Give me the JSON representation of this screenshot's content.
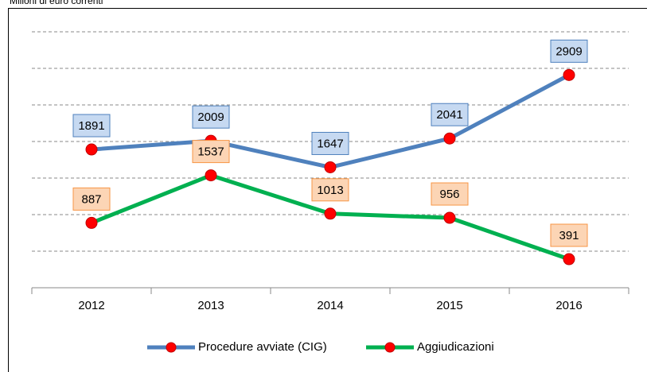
{
  "chart_data": {
    "type": "line",
    "subtitle": "Milioni di euro correnti",
    "categories": [
      "2012",
      "2013",
      "2014",
      "2015",
      "2016"
    ],
    "series": [
      {
        "name": "Procedure avviate (CIG)",
        "color": "#4f81bd",
        "label_fill": "#c6d9f1",
        "values": [
          1891,
          2009,
          1647,
          2041,
          2909
        ]
      },
      {
        "name": "Aggiudicazioni",
        "color": "#00b050",
        "label_fill": "#fcd5b5",
        "label_border": "#f79646",
        "values": [
          887,
          1537,
          1013,
          956,
          391
        ]
      }
    ],
    "marker_color": "#ff0000",
    "ylim": [
      0,
      3500
    ],
    "yticks": [
      500,
      1000,
      1500,
      2000,
      2500,
      3000,
      3500
    ],
    "grid": true
  }
}
